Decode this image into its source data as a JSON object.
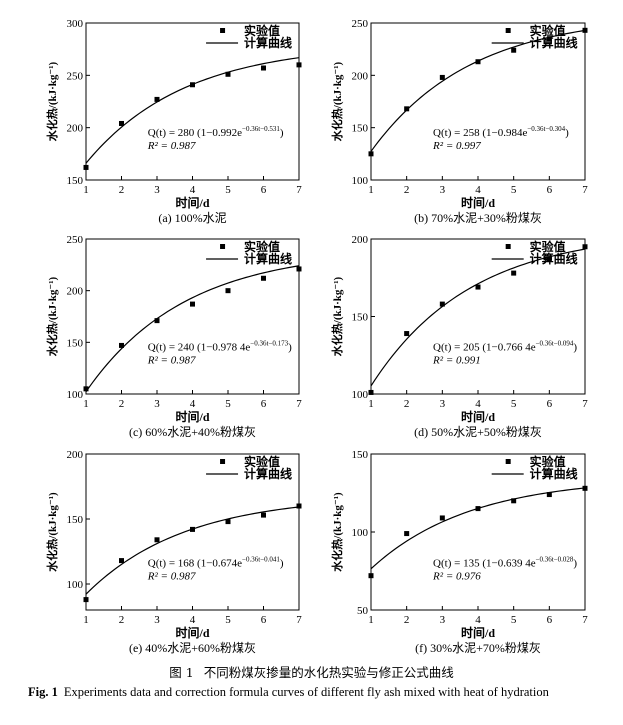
{
  "caption_cn": {
    "label": "图 1",
    "text": "不同粉煤灰掺量的水化热实验与修正公式曲线"
  },
  "caption_en": {
    "label": "Fig. 1",
    "text": "Experiments data and correction formula curves of different fly ash mixed with heat of hydration"
  },
  "colors": {
    "ink": "#000000",
    "background": "#ffffff"
  },
  "chart_data": [
    {
      "type": "scatter",
      "panel": "(a) 100%水泥",
      "xlabel": "时间/d",
      "ylabel": "水化热/(kJ·kg⁻¹)",
      "xlim": [
        1,
        7
      ],
      "ylim": [
        150,
        300
      ],
      "xticks": [
        1,
        2,
        3,
        4,
        5,
        6,
        7
      ],
      "yticks": [
        150,
        200,
        250,
        300
      ],
      "legend": [
        "实验值",
        "计算曲线"
      ],
      "legend_position": "top-right",
      "formula": {
        "Q": 280,
        "b": 0.992,
        "k": 0.36,
        "c": 0.531
      },
      "formula_text": {
        "lhs": "Q(t) = 280 (1−0.992e",
        "exp": "−0.36t−0.531",
        "rhs": ")"
      },
      "r2_text": "R² = 0.987",
      "points": {
        "x": [
          1,
          2,
          3,
          4,
          5,
          6,
          7
        ],
        "y": [
          162,
          204,
          227,
          241,
          251,
          257,
          260
        ]
      }
    },
    {
      "type": "scatter",
      "panel": "(b) 70%水泥+30%粉煤灰",
      "xlabel": "时间/d",
      "ylabel": "水化热/(kJ·kg⁻¹)",
      "xlim": [
        1,
        7
      ],
      "ylim": [
        100,
        250
      ],
      "xticks": [
        1,
        2,
        3,
        4,
        5,
        6,
        7
      ],
      "yticks": [
        100,
        150,
        200,
        250
      ],
      "legend": [
        "实验值",
        "计算曲线"
      ],
      "legend_position": "top-right",
      "formula": {
        "Q": 258,
        "b": 0.984,
        "k": 0.36,
        "c": 0.304
      },
      "formula_text": {
        "lhs": "Q(t) = 258 (1−0.984e",
        "exp": "−0.36t−0.304",
        "rhs": ")"
      },
      "r2_text": "R² = 0.997",
      "points": {
        "x": [
          1,
          2,
          3,
          4,
          5,
          6,
          7
        ],
        "y": [
          125,
          168,
          198,
          213,
          224,
          235,
          243
        ]
      }
    },
    {
      "type": "scatter",
      "panel": "(c) 60%水泥+40%粉煤灰",
      "xlabel": "时间/d",
      "ylabel": "水化热/(kJ·kg⁻¹)",
      "xlim": [
        1,
        7
      ],
      "ylim": [
        100,
        250
      ],
      "xticks": [
        1,
        2,
        3,
        4,
        5,
        6,
        7
      ],
      "yticks": [
        100,
        150,
        200,
        250
      ],
      "legend": [
        "实验值",
        "计算曲线"
      ],
      "legend_position": "top-right",
      "formula": {
        "Q": 240,
        "b": 0.9784,
        "k": 0.36,
        "c": 0.173
      },
      "formula_text": {
        "lhs": "Q(t) = 240 (1−0.978 4e",
        "exp": "−0.36t−0.173",
        "rhs": ")"
      },
      "r2_text": "R² = 0.987",
      "points": {
        "x": [
          1,
          2,
          3,
          4,
          5,
          6,
          7
        ],
        "y": [
          105,
          147,
          171,
          187,
          200,
          212,
          221
        ]
      }
    },
    {
      "type": "scatter",
      "panel": "(d) 50%水泥+50%粉煤灰",
      "xlabel": "时间/d",
      "ylabel": "水化热/(kJ·kg⁻¹)",
      "xlim": [
        1,
        7
      ],
      "ylim": [
        100,
        200
      ],
      "xticks": [
        1,
        2,
        3,
        4,
        5,
        6,
        7
      ],
      "yticks": [
        100,
        150,
        200
      ],
      "legend": [
        "实验值",
        "计算曲线"
      ],
      "legend_position": "top-right",
      "formula": {
        "Q": 205,
        "b": 0.7664,
        "k": 0.36,
        "c": 0.094
      },
      "formula_text": {
        "lhs": "Q(t) = 205 (1−0.766 4e",
        "exp": "−0.36t−0.094",
        "rhs": ")"
      },
      "r2_text": "R² = 0.991",
      "points": {
        "x": [
          1,
          2,
          3,
          4,
          5,
          6,
          7
        ],
        "y": [
          101,
          139,
          158,
          169,
          178,
          187,
          195
        ]
      }
    },
    {
      "type": "scatter",
      "panel": "(e) 40%水泥+60%粉煤灰",
      "xlabel": "时间/d",
      "ylabel": "水化热/(kJ·kg⁻¹)",
      "xlim": [
        1,
        7
      ],
      "ylim": [
        80,
        200
      ],
      "xticks": [
        1,
        2,
        3,
        4,
        5,
        6,
        7
      ],
      "yticks": [
        100,
        150,
        200
      ],
      "legend": [
        "实验值",
        "计算曲线"
      ],
      "legend_position": "top-right",
      "formula": {
        "Q": 168,
        "b": 0.674,
        "k": 0.36,
        "c": 0.041
      },
      "formula_text": {
        "lhs": "Q(t) = 168 (1−0.674e",
        "exp": "−0.36t−0.041",
        "rhs": ")"
      },
      "r2_text": "R² = 0.987",
      "points": {
        "x": [
          1,
          2,
          3,
          4,
          5,
          6,
          7
        ],
        "y": [
          88,
          118,
          134,
          142,
          148,
          153,
          160
        ]
      }
    },
    {
      "type": "scatter",
      "panel": "(f) 30%水泥+70%粉煤灰",
      "xlabel": "时间/d",
      "ylabel": "水化热/(kJ·kg⁻¹)",
      "xlim": [
        1,
        7
      ],
      "ylim": [
        50,
        150
      ],
      "xticks": [
        1,
        2,
        3,
        4,
        5,
        6,
        7
      ],
      "yticks": [
        50,
        100,
        150
      ],
      "legend": [
        "实验值",
        "计算曲线"
      ],
      "legend_position": "top-right",
      "formula": {
        "Q": 135,
        "b": 0.6394,
        "k": 0.36,
        "c": 0.028
      },
      "formula_text": {
        "lhs": "Q(t) = 135 (1−0.639 4e",
        "exp": "−0.36t−0.028",
        "rhs": ")"
      },
      "r2_text": "R² = 0.976",
      "points": {
        "x": [
          1,
          2,
          3,
          4,
          5,
          6,
          7
        ],
        "y": [
          72,
          99,
          109,
          115,
          120,
          124,
          128
        ]
      }
    }
  ]
}
